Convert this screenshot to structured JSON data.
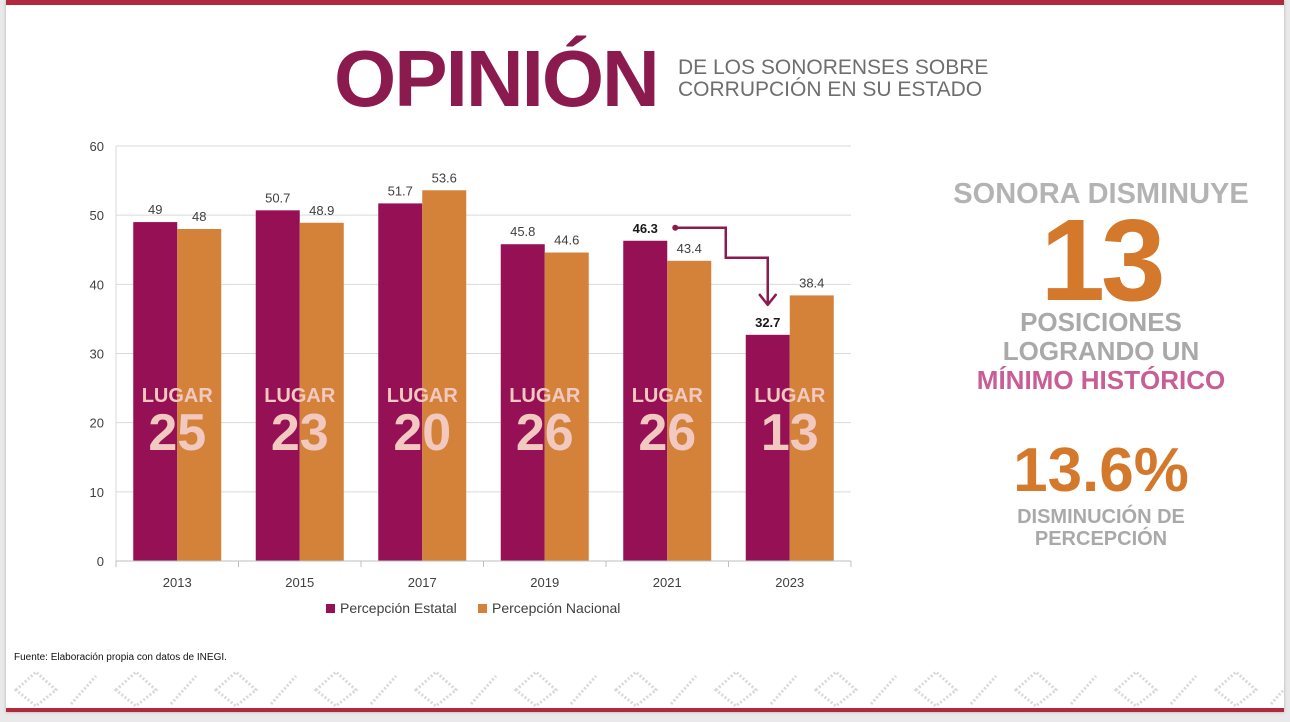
{
  "header": {
    "title": "OPINIÓN",
    "subtitle_line1": "DE LOS SONORENSES SOBRE",
    "subtitle_line2": "CORRUPCIÓN EN SU ESTADO"
  },
  "chart_data": {
    "type": "bar",
    "categories": [
      "2013",
      "2015",
      "2017",
      "2019",
      "2021",
      "2023"
    ],
    "series": [
      {
        "name": "Percepción Estatal",
        "values": [
          49,
          50.7,
          51.7,
          45.8,
          46.3,
          32.7
        ],
        "color": "#961055"
      },
      {
        "name": "Percepción Nacional",
        "values": [
          48,
          48.9,
          53.6,
          44.6,
          43.4,
          38.4
        ],
        "color": "#d4823a"
      }
    ],
    "ylim": [
      0,
      60
    ],
    "yticks": [
      0,
      10,
      20,
      30,
      40,
      50,
      60
    ],
    "grid": true,
    "legend_position": "bottom",
    "bold_labels": [
      "46.3",
      "32.7"
    ],
    "rank_label": "LUGAR",
    "ranks": [
      "25",
      "23",
      "20",
      "26",
      "26",
      "13"
    ],
    "annotation": "arrow from 2021 Percepción Estatal value to 2023 Percepción Estatal value"
  },
  "side": {
    "headline": "SONORA DISMINUYE",
    "big_number": "13",
    "line1": "POSICIONES",
    "line2": "LOGRANDO UN",
    "accent": "MÍNIMO HISTÓRICO",
    "percent": "13.6%",
    "percent_caption1": "DISMINUCIÓN DE",
    "percent_caption2": "PERCEPCIÓN"
  },
  "footer": {
    "source": "Fuente: Elaboración propia con datos de INEGI."
  },
  "colors": {
    "brand": "#8b1a4e",
    "accent_orange": "#d4782c",
    "bar_estatal": "#961055",
    "bar_nacional": "#d4823a",
    "rank_text": "#f2c9c0",
    "arrow": "#8b1a4e"
  }
}
